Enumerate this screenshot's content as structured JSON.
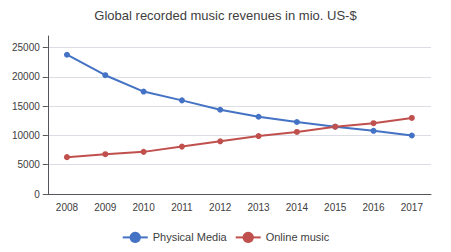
{
  "chart_data": {
    "type": "line",
    "title": "Global recorded music revenues in mio. US-$",
    "categories": [
      "2008",
      "2009",
      "2010",
      "2011",
      "2012",
      "2013",
      "2014",
      "2015",
      "2016",
      "2017"
    ],
    "series": [
      {
        "name": "Physical Media",
        "color": "#4472C4",
        "marker": "circle",
        "values": [
          23800,
          20300,
          17500,
          16000,
          14400,
          13200,
          12300,
          11500,
          10800,
          10000
        ]
      },
      {
        "name": "Online music",
        "color": "#C0504D",
        "marker": "circle",
        "values": [
          6300,
          6800,
          7200,
          8100,
          9000,
          9900,
          10600,
          11500,
          12100,
          13000
        ]
      }
    ],
    "ylim": [
      0,
      27000
    ],
    "yticks": [
      0,
      5000,
      10000,
      15000,
      20000,
      25000
    ],
    "grid": true,
    "legend": "bottom"
  }
}
